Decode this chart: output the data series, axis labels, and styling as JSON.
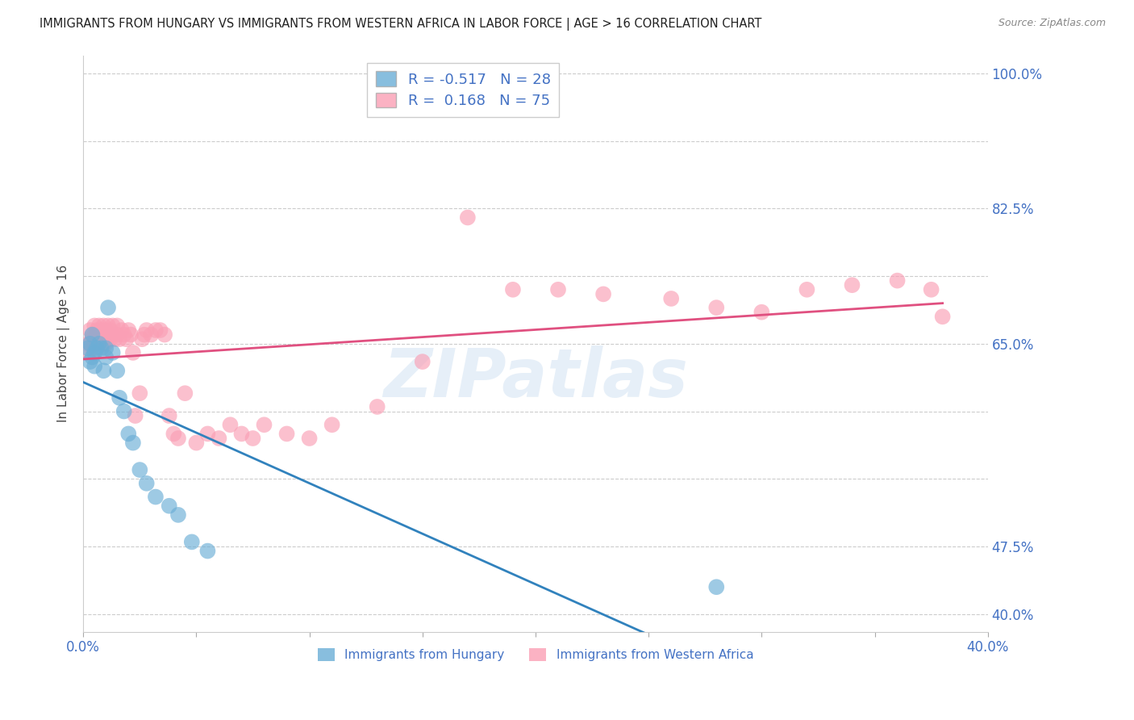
{
  "title": "IMMIGRANTS FROM HUNGARY VS IMMIGRANTS FROM WESTERN AFRICA IN LABOR FORCE | AGE > 16 CORRELATION CHART",
  "source_text": "Source: ZipAtlas.com",
  "ylabel": "In Labor Force | Age > 16",
  "xlim": [
    0.0,
    0.4
  ],
  "ylim": [
    0.38,
    1.02
  ],
  "yticks": [
    0.4,
    0.475,
    0.55,
    0.625,
    0.7,
    0.775,
    0.85,
    0.925,
    1.0
  ],
  "ytick_labels": [
    "40.0%",
    "47.5%",
    "",
    "",
    "65.0%",
    "",
    "82.5%",
    "",
    "100.0%"
  ],
  "xticks": [
    0.0,
    0.05,
    0.1,
    0.15,
    0.2,
    0.25,
    0.3,
    0.35,
    0.4
  ],
  "xtick_labels": [
    "0.0%",
    "",
    "",
    "",
    "",
    "",
    "",
    "",
    "40.0%"
  ],
  "legend_blue_R": "-0.517",
  "legend_blue_N": "28",
  "legend_pink_R": "0.168",
  "legend_pink_N": "75",
  "blue_color": "#6baed6",
  "pink_color": "#fa9fb5",
  "blue_line_color": "#3182bd",
  "pink_line_color": "#e05080",
  "watermark": "ZIPatlas",
  "hungary_x": [
    0.002,
    0.003,
    0.003,
    0.004,
    0.004,
    0.005,
    0.005,
    0.006,
    0.007,
    0.008,
    0.009,
    0.01,
    0.01,
    0.011,
    0.013,
    0.015,
    0.016,
    0.018,
    0.02,
    0.022,
    0.025,
    0.028,
    0.032,
    0.038,
    0.042,
    0.048,
    0.055,
    0.28
  ],
  "hungary_y": [
    0.695,
    0.7,
    0.68,
    0.71,
    0.685,
    0.69,
    0.675,
    0.695,
    0.7,
    0.695,
    0.67,
    0.685,
    0.695,
    0.74,
    0.69,
    0.67,
    0.64,
    0.625,
    0.6,
    0.59,
    0.56,
    0.545,
    0.53,
    0.52,
    0.51,
    0.48,
    0.47,
    0.43
  ],
  "w_africa_x": [
    0.002,
    0.002,
    0.003,
    0.003,
    0.004,
    0.004,
    0.004,
    0.005,
    0.005,
    0.005,
    0.006,
    0.006,
    0.006,
    0.007,
    0.007,
    0.007,
    0.008,
    0.008,
    0.009,
    0.009,
    0.01,
    0.01,
    0.011,
    0.011,
    0.012,
    0.012,
    0.013,
    0.013,
    0.014,
    0.015,
    0.015,
    0.016,
    0.017,
    0.018,
    0.019,
    0.02,
    0.021,
    0.022,
    0.023,
    0.025,
    0.026,
    0.027,
    0.028,
    0.03,
    0.032,
    0.034,
    0.036,
    0.038,
    0.04,
    0.042,
    0.045,
    0.05,
    0.055,
    0.06,
    0.065,
    0.07,
    0.075,
    0.08,
    0.09,
    0.1,
    0.11,
    0.13,
    0.15,
    0.17,
    0.19,
    0.21,
    0.23,
    0.26,
    0.28,
    0.3,
    0.32,
    0.34,
    0.36,
    0.375,
    0.38
  ],
  "w_africa_y": [
    0.7,
    0.69,
    0.715,
    0.7,
    0.71,
    0.695,
    0.705,
    0.72,
    0.7,
    0.71,
    0.715,
    0.7,
    0.71,
    0.72,
    0.705,
    0.71,
    0.715,
    0.705,
    0.72,
    0.7,
    0.715,
    0.7,
    0.71,
    0.72,
    0.705,
    0.715,
    0.71,
    0.72,
    0.705,
    0.71,
    0.72,
    0.705,
    0.715,
    0.71,
    0.705,
    0.715,
    0.71,
    0.69,
    0.62,
    0.645,
    0.705,
    0.71,
    0.715,
    0.71,
    0.715,
    0.715,
    0.71,
    0.62,
    0.6,
    0.595,
    0.645,
    0.59,
    0.6,
    0.595,
    0.61,
    0.6,
    0.595,
    0.61,
    0.6,
    0.595,
    0.61,
    0.63,
    0.68,
    0.84,
    0.76,
    0.76,
    0.755,
    0.75,
    0.74,
    0.735,
    0.76,
    0.765,
    0.77,
    0.76,
    0.73
  ]
}
